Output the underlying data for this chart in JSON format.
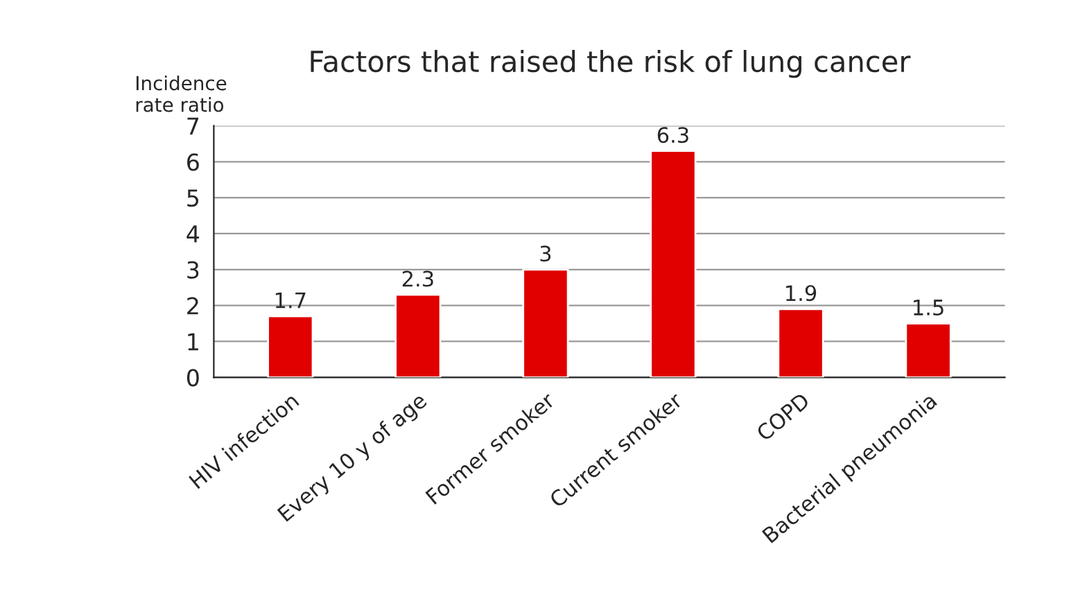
{
  "chart_data": {
    "type": "bar",
    "title": "Factors that raised the risk of lung cancer",
    "ylabel": "Incidence\nrate ratio",
    "categories": [
      "HIV infection",
      "Every 10 y of age",
      "Former smoker",
      "Current smoker",
      "COPD",
      "Bacterial pneumonia"
    ],
    "values": [
      1.7,
      2.3,
      3,
      6.3,
      1.9,
      1.5
    ],
    "color": "#e00000",
    "ylim": [
      0,
      7
    ],
    "yticks": [
      0,
      1,
      2,
      3,
      4,
      5,
      6,
      7
    ],
    "grid": "y",
    "data_labels": true
  }
}
